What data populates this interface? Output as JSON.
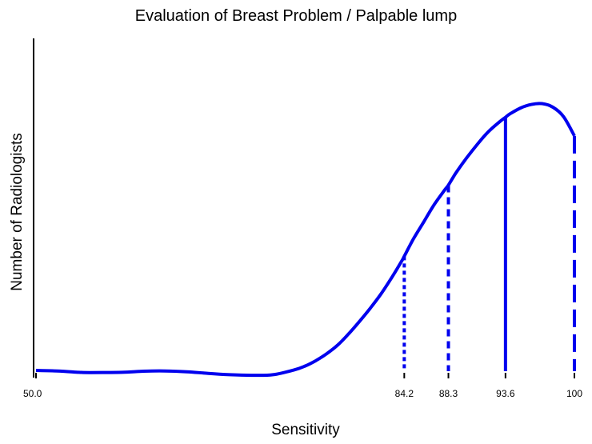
{
  "chart_data": {
    "type": "line",
    "title": "Evaluation of Breast Problem / Palpable lump",
    "xlabel": "Sensitivity",
    "ylabel": "Number of Radiologists",
    "xlim": [
      50,
      100
    ],
    "ylim": [
      0,
      1
    ],
    "x_tick_labels": [
      {
        "value": 50,
        "label": "50.0"
      },
      {
        "value": 84.2,
        "label": "84.2"
      },
      {
        "value": 88.3,
        "label": "88.3"
      },
      {
        "value": 93.6,
        "label": "93.6"
      },
      {
        "value": 100,
        "label": "100"
      }
    ],
    "grid": false,
    "series": [
      {
        "color": "#0000ee",
        "x": [
          50,
          52,
          54,
          55,
          58,
          60,
          62,
          64,
          66,
          68,
          70,
          72,
          74,
          75,
          76,
          77,
          78,
          79,
          80,
          81,
          82,
          83,
          84,
          84.2,
          85,
          86,
          87,
          88,
          88.3,
          89,
          90,
          91,
          92,
          93,
          93.6,
          94,
          95,
          96,
          97,
          98,
          99,
          100
        ],
        "y": [
          0.003,
          0.001,
          -0.004,
          -0.005,
          -0.004,
          0.0,
          0.001,
          -0.002,
          -0.008,
          -0.013,
          -0.015,
          -0.013,
          0.005,
          0.019,
          0.039,
          0.064,
          0.095,
          0.135,
          0.18,
          0.228,
          0.28,
          0.34,
          0.405,
          0.42,
          0.48,
          0.545,
          0.61,
          0.665,
          0.68,
          0.725,
          0.78,
          0.83,
          0.875,
          0.91,
          0.928,
          0.94,
          0.962,
          0.975,
          0.978,
          0.965,
          0.93,
          0.86
        ]
      }
    ],
    "reference_lines": [
      {
        "x": 84.2,
        "y": 0.42,
        "style": "dotted"
      },
      {
        "x": 88.3,
        "y": 0.68,
        "style": "dashed"
      },
      {
        "x": 93.6,
        "y": 0.928,
        "style": "solid"
      },
      {
        "x": 100,
        "y": 0.86,
        "style": "long-dash"
      }
    ]
  }
}
